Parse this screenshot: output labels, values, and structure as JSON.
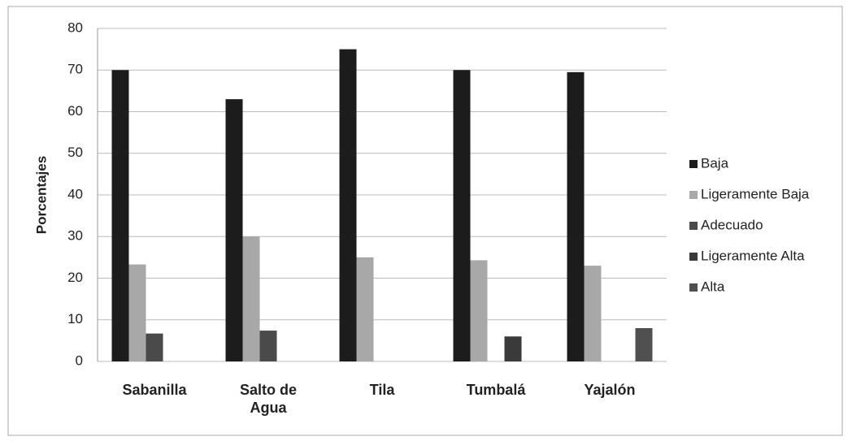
{
  "chart_data": {
    "type": "bar",
    "y_label": "Porcentajes",
    "categories": [
      "Sabanilla",
      "Salto de Agua",
      "Tila",
      "Tumbalá",
      "Yajalón"
    ],
    "series": [
      {
        "name": "Baja",
        "color": "#1c1c1c",
        "values": [
          70,
          63,
          75,
          70,
          69.5
        ]
      },
      {
        "name": "Ligeramente Baja",
        "color": "#a8a8a8",
        "values": [
          23.3,
          30,
          25,
          24.3,
          23
        ]
      },
      {
        "name": "Adecuado",
        "color": "#4a4a4a",
        "values": [
          6.7,
          7.4,
          0,
          0,
          0
        ]
      },
      {
        "name": "Ligeramente Alta",
        "color": "#3a3a3a",
        "values": [
          0,
          0,
          0,
          6,
          0
        ]
      },
      {
        "name": "Alta",
        "color": "#505050",
        "values": [
          0,
          0,
          0,
          0,
          8
        ]
      }
    ],
    "ylim": [
      0,
      80
    ],
    "yticks": [
      0,
      10,
      20,
      30,
      40,
      50,
      60,
      70,
      80
    ],
    "grid": true,
    "legend": "right"
  }
}
